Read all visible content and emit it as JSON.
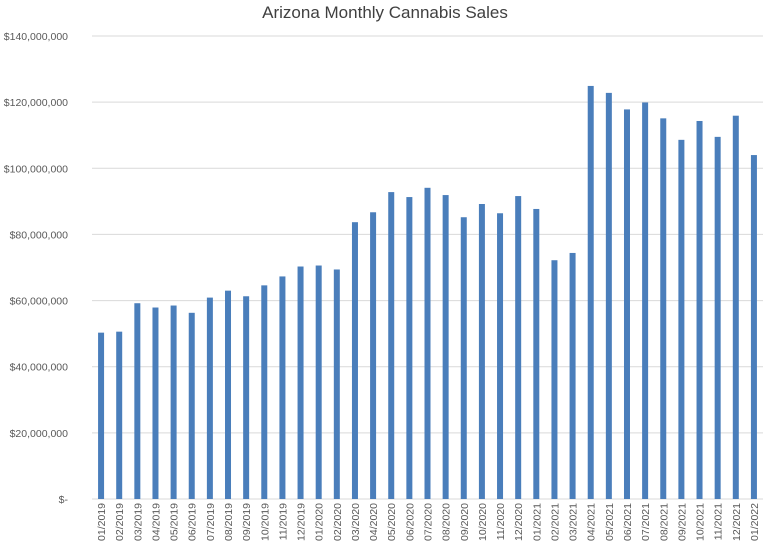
{
  "chart_data": {
    "type": "bar",
    "title": "Arizona Monthly Cannabis Sales",
    "xlabel": "",
    "ylabel": "",
    "ylim": [
      0,
      140000000
    ],
    "yticks": [
      0,
      20000000,
      40000000,
      60000000,
      80000000,
      100000000,
      120000000,
      140000000
    ],
    "ytick_labels": [
      "$-",
      "$20,000,000",
      "$40,000,000",
      "$60,000,000",
      "$80,000,000",
      "$100,000,000",
      "$120,000,000",
      "$140,000,000"
    ],
    "grid": true,
    "legend": "none",
    "bar_color": "#4a7ebb",
    "categories": [
      "01/2019",
      "02/2019",
      "03/2019",
      "04/2019",
      "05/2019",
      "06/2019",
      "07/2019",
      "08/2019",
      "09/2019",
      "10/2019",
      "11/2019",
      "12/2019",
      "01/2020",
      "02/2020",
      "03/2020",
      "04/2020",
      "05/2020",
      "06/2020",
      "07/2020",
      "08/2020",
      "09/2020",
      "10/2020",
      "11/2020",
      "12/2020",
      "01/2021",
      "02/2021",
      "03/2021",
      "04/2021",
      "05/2021",
      "06/2021",
      "07/2021",
      "08/2021",
      "09/2021",
      "10/2021",
      "11/2021",
      "12/2021",
      "01/2022"
    ],
    "values": [
      50300000,
      50600000,
      59200000,
      57900000,
      58500000,
      56300000,
      60900000,
      63000000,
      61300000,
      64600000,
      67300000,
      70300000,
      70600000,
      69400000,
      83700000,
      86700000,
      92800000,
      91300000,
      94100000,
      91900000,
      85200000,
      89200000,
      86400000,
      91600000,
      87700000,
      72200000,
      74400000,
      124900000,
      122800000,
      117800000,
      119900000,
      115100000,
      108600000,
      114300000,
      109500000,
      115900000,
      104000000
    ]
  }
}
